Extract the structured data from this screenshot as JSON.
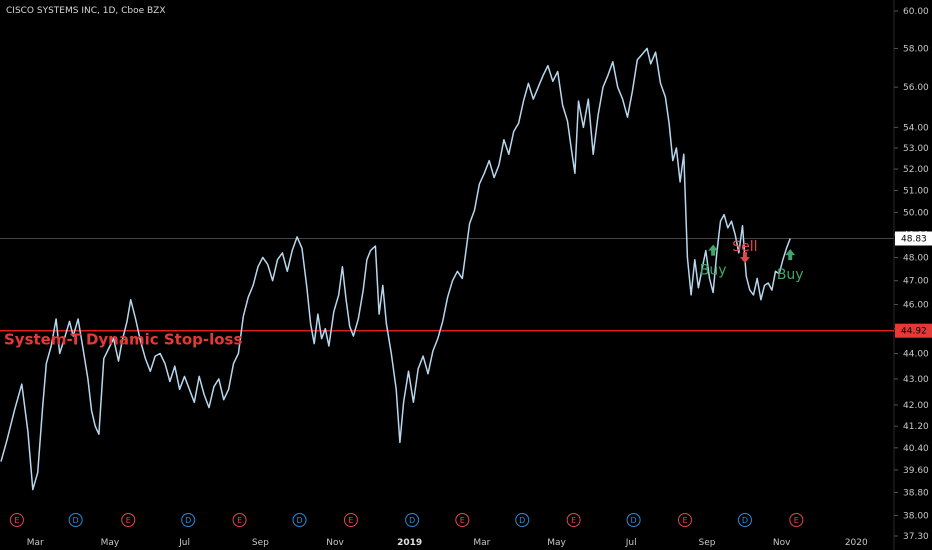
{
  "header": {
    "title": "CISCO SYSTEMS INC, 1D, Cboe BZX"
  },
  "colors": {
    "background": "#000000",
    "price_line": "#b7d7ee",
    "stop_line": "#e11d1d",
    "buy": "#3fa66b",
    "sell": "#e04848",
    "earnings": "#e04848",
    "dividend": "#2c8ad8",
    "current_line": "#444444"
  },
  "chart_data": {
    "type": "line",
    "title": "CISCO SYSTEMS INC, 1D, Cboe BZX",
    "x_range": [
      "2018-02-01",
      "2020-01-31"
    ],
    "y_scale": "log",
    "y_range": [
      37.3,
      60.6
    ],
    "y_ticks": [
      "60.00",
      "58.00",
      "56.00",
      "54.00",
      "53.00",
      "52.00",
      "51.00",
      "50.00",
      "49.00",
      "48.00",
      "47.00",
      "46.00",
      "45.00",
      "44.00",
      "43.00",
      "42.00",
      "41.20",
      "40.40",
      "39.60",
      "38.80",
      "38.00",
      "37.30"
    ],
    "x_ticks": [
      {
        "label": "Mar",
        "date": "2018-03-01",
        "bold": false
      },
      {
        "label": "May",
        "date": "2018-05-01",
        "bold": false
      },
      {
        "label": "Jul",
        "date": "2018-07-01",
        "bold": false
      },
      {
        "label": "Sep",
        "date": "2018-09-01",
        "bold": false
      },
      {
        "label": "Nov",
        "date": "2018-11-01",
        "bold": false
      },
      {
        "label": "2019",
        "date": "2019-01-01",
        "bold": true
      },
      {
        "label": "Mar",
        "date": "2019-03-01",
        "bold": false
      },
      {
        "label": "May",
        "date": "2019-05-01",
        "bold": false
      },
      {
        "label": "Jul",
        "date": "2019-07-01",
        "bold": false
      },
      {
        "label": "Sep",
        "date": "2019-09-01",
        "bold": false
      },
      {
        "label": "Nov",
        "date": "2019-11-01",
        "bold": false
      },
      {
        "label": "2020",
        "date": "2020-01-01",
        "bold": false
      }
    ],
    "series": [
      {
        "kind": "price",
        "points": [
          [
            "2018-02-01",
            39.9
          ],
          [
            "2018-02-06",
            40.7
          ],
          [
            "2018-02-12",
            41.8
          ],
          [
            "2018-02-18",
            42.8
          ],
          [
            "2018-02-23",
            41.0
          ],
          [
            "2018-02-27",
            38.9
          ],
          [
            "2018-03-03",
            39.5
          ],
          [
            "2018-03-07",
            41.9
          ],
          [
            "2018-03-10",
            43.6
          ],
          [
            "2018-03-14",
            44.3
          ],
          [
            "2018-03-18",
            45.4
          ],
          [
            "2018-03-21",
            44.0
          ],
          [
            "2018-03-26",
            44.8
          ],
          [
            "2018-03-29",
            45.3
          ],
          [
            "2018-04-01",
            44.7
          ],
          [
            "2018-04-05",
            45.4
          ],
          [
            "2018-04-09",
            44.2
          ],
          [
            "2018-04-13",
            43.0
          ],
          [
            "2018-04-16",
            41.8
          ],
          [
            "2018-04-19",
            41.2
          ],
          [
            "2018-04-22",
            40.9
          ],
          [
            "2018-04-26",
            43.8
          ],
          [
            "2018-04-30",
            44.2
          ],
          [
            "2018-05-04",
            44.6
          ],
          [
            "2018-05-08",
            43.7
          ],
          [
            "2018-05-11",
            44.5
          ],
          [
            "2018-05-15",
            45.3
          ],
          [
            "2018-05-18",
            46.2
          ],
          [
            "2018-05-22",
            45.4
          ],
          [
            "2018-05-26",
            44.5
          ],
          [
            "2018-05-30",
            43.8
          ],
          [
            "2018-06-03",
            43.3
          ],
          [
            "2018-06-07",
            43.9
          ],
          [
            "2018-06-11",
            44.0
          ],
          [
            "2018-06-15",
            43.6
          ],
          [
            "2018-06-19",
            42.9
          ],
          [
            "2018-06-23",
            43.5
          ],
          [
            "2018-06-27",
            42.6
          ],
          [
            "2018-07-01",
            43.1
          ],
          [
            "2018-07-05",
            42.6
          ],
          [
            "2018-07-09",
            42.1
          ],
          [
            "2018-07-13",
            43.1
          ],
          [
            "2018-07-17",
            42.4
          ],
          [
            "2018-07-21",
            41.9
          ],
          [
            "2018-07-25",
            42.7
          ],
          [
            "2018-07-29",
            43.0
          ],
          [
            "2018-08-02",
            42.2
          ],
          [
            "2018-08-06",
            42.6
          ],
          [
            "2018-08-10",
            43.6
          ],
          [
            "2018-08-14",
            44.0
          ],
          [
            "2018-08-18",
            45.5
          ],
          [
            "2018-08-22",
            46.3
          ],
          [
            "2018-08-26",
            46.8
          ],
          [
            "2018-08-30",
            47.6
          ],
          [
            "2018-09-03",
            48.0
          ],
          [
            "2018-09-07",
            47.7
          ],
          [
            "2018-09-11",
            47.0
          ],
          [
            "2018-09-15",
            47.9
          ],
          [
            "2018-09-19",
            48.2
          ],
          [
            "2018-09-23",
            47.4
          ],
          [
            "2018-09-27",
            48.3
          ],
          [
            "2018-10-01",
            48.9
          ],
          [
            "2018-10-05",
            48.4
          ],
          [
            "2018-10-09",
            46.7
          ],
          [
            "2018-10-12",
            45.2
          ],
          [
            "2018-10-15",
            44.4
          ],
          [
            "2018-10-18",
            45.6
          ],
          [
            "2018-10-21",
            44.6
          ],
          [
            "2018-10-24",
            45.0
          ],
          [
            "2018-10-27",
            44.3
          ],
          [
            "2018-10-31",
            45.7
          ],
          [
            "2018-11-04",
            46.4
          ],
          [
            "2018-11-07",
            47.6
          ],
          [
            "2018-11-10",
            46.2
          ],
          [
            "2018-11-13",
            45.1
          ],
          [
            "2018-11-16",
            44.7
          ],
          [
            "2018-11-20",
            45.4
          ],
          [
            "2018-11-24",
            46.6
          ],
          [
            "2018-11-27",
            47.9
          ],
          [
            "2018-11-30",
            48.3
          ],
          [
            "2018-12-04",
            48.5
          ],
          [
            "2018-12-07",
            45.6
          ],
          [
            "2018-12-10",
            46.8
          ],
          [
            "2018-12-13",
            45.2
          ],
          [
            "2018-12-17",
            44.0
          ],
          [
            "2018-12-21",
            42.6
          ],
          [
            "2018-12-24",
            40.6
          ],
          [
            "2018-12-27",
            42.1
          ],
          [
            "2018-12-31",
            43.3
          ],
          [
            "2019-01-04",
            42.1
          ],
          [
            "2019-01-08",
            43.4
          ],
          [
            "2019-01-12",
            43.9
          ],
          [
            "2019-01-16",
            43.2
          ],
          [
            "2019-01-20",
            44.1
          ],
          [
            "2019-01-24",
            44.6
          ],
          [
            "2019-01-28",
            45.3
          ],
          [
            "2019-02-01",
            46.3
          ],
          [
            "2019-02-05",
            47.0
          ],
          [
            "2019-02-09",
            47.4
          ],
          [
            "2019-02-13",
            47.1
          ],
          [
            "2019-02-16",
            48.3
          ],
          [
            "2019-02-19",
            49.5
          ],
          [
            "2019-02-23",
            50.1
          ],
          [
            "2019-02-27",
            51.3
          ],
          [
            "2019-03-03",
            51.8
          ],
          [
            "2019-03-07",
            52.4
          ],
          [
            "2019-03-11",
            51.6
          ],
          [
            "2019-03-15",
            52.2
          ],
          [
            "2019-03-19",
            53.4
          ],
          [
            "2019-03-23",
            52.7
          ],
          [
            "2019-03-27",
            53.8
          ],
          [
            "2019-03-31",
            54.2
          ],
          [
            "2019-04-04",
            55.3
          ],
          [
            "2019-04-08",
            56.2
          ],
          [
            "2019-04-12",
            55.4
          ],
          [
            "2019-04-16",
            56.0
          ],
          [
            "2019-04-20",
            56.6
          ],
          [
            "2019-04-24",
            57.1
          ],
          [
            "2019-04-28",
            56.3
          ],
          [
            "2019-05-02",
            56.8
          ],
          [
            "2019-05-06",
            55.1
          ],
          [
            "2019-05-10",
            54.3
          ],
          [
            "2019-05-13",
            53.0
          ],
          [
            "2019-05-16",
            51.8
          ],
          [
            "2019-05-19",
            55.3
          ],
          [
            "2019-05-23",
            54.0
          ],
          [
            "2019-05-27",
            55.4
          ],
          [
            "2019-05-31",
            52.7
          ],
          [
            "2019-06-04",
            54.6
          ],
          [
            "2019-06-08",
            56.0
          ],
          [
            "2019-06-12",
            56.6
          ],
          [
            "2019-06-16",
            57.3
          ],
          [
            "2019-06-20",
            56.0
          ],
          [
            "2019-06-24",
            55.4
          ],
          [
            "2019-06-28",
            54.5
          ],
          [
            "2019-07-02",
            55.8
          ],
          [
            "2019-07-06",
            57.4
          ],
          [
            "2019-07-10",
            57.7
          ],
          [
            "2019-07-14",
            58.0
          ],
          [
            "2019-07-17",
            57.2
          ],
          [
            "2019-07-21",
            57.8
          ],
          [
            "2019-07-25",
            56.2
          ],
          [
            "2019-07-29",
            55.5
          ],
          [
            "2019-08-01",
            54.2
          ],
          [
            "2019-08-04",
            52.4
          ],
          [
            "2019-08-07",
            53.0
          ],
          [
            "2019-08-10",
            51.4
          ],
          [
            "2019-08-13",
            52.7
          ],
          [
            "2019-08-16",
            48.0
          ],
          [
            "2019-08-19",
            46.4
          ],
          [
            "2019-08-22",
            47.9
          ],
          [
            "2019-08-25",
            46.7
          ],
          [
            "2019-08-28",
            47.5
          ],
          [
            "2019-08-31",
            48.3
          ],
          [
            "2019-09-03",
            47.1
          ],
          [
            "2019-09-06",
            46.5
          ],
          [
            "2019-09-09",
            48.2
          ],
          [
            "2019-09-12",
            49.6
          ],
          [
            "2019-09-15",
            49.9
          ],
          [
            "2019-09-18",
            49.3
          ],
          [
            "2019-09-21",
            49.6
          ],
          [
            "2019-09-24",
            49.0
          ],
          [
            "2019-09-27",
            48.2
          ],
          [
            "2019-09-30",
            49.4
          ],
          [
            "2019-10-03",
            47.2
          ],
          [
            "2019-10-06",
            46.6
          ],
          [
            "2019-10-09",
            46.4
          ],
          [
            "2019-10-12",
            47.1
          ],
          [
            "2019-10-15",
            46.2
          ],
          [
            "2019-10-18",
            46.8
          ],
          [
            "2019-10-21",
            46.9
          ],
          [
            "2019-10-24",
            46.6
          ],
          [
            "2019-10-27",
            47.4
          ],
          [
            "2019-10-30",
            47.3
          ],
          [
            "2019-11-02",
            47.9
          ],
          [
            "2019-11-05",
            48.4
          ],
          [
            "2019-11-08",
            48.83
          ]
        ]
      }
    ],
    "current_price": {
      "value": 48.83,
      "label": "48.83"
    },
    "stop_loss": {
      "value": 44.92,
      "label": "44.92",
      "text": "System-T Dynamic Stop-loss"
    },
    "signals": [
      {
        "type": "Buy",
        "date": "2019-09-06",
        "value": 48.3,
        "label": "Buy"
      },
      {
        "type": "Sell",
        "date": "2019-10-02",
        "value": 48.1,
        "label": "Sell"
      },
      {
        "type": "Buy",
        "date": "2019-11-08",
        "value": 48.1,
        "label": "Buy"
      }
    ],
    "events": [
      {
        "kind": "earnings",
        "label": "E",
        "date": "2018-02-14"
      },
      {
        "kind": "dividend",
        "label": "D",
        "date": "2018-04-03"
      },
      {
        "kind": "earnings",
        "label": "E",
        "date": "2018-05-16"
      },
      {
        "kind": "dividend",
        "label": "D",
        "date": "2018-07-04"
      },
      {
        "kind": "earnings",
        "label": "E",
        "date": "2018-08-15"
      },
      {
        "kind": "dividend",
        "label": "D",
        "date": "2018-10-03"
      },
      {
        "kind": "earnings",
        "label": "E",
        "date": "2018-11-14"
      },
      {
        "kind": "dividend",
        "label": "D",
        "date": "2019-01-03"
      },
      {
        "kind": "earnings",
        "label": "E",
        "date": "2019-02-13"
      },
      {
        "kind": "dividend",
        "label": "D",
        "date": "2019-04-03"
      },
      {
        "kind": "earnings",
        "label": "E",
        "date": "2019-05-15"
      },
      {
        "kind": "dividend",
        "label": "D",
        "date": "2019-07-03"
      },
      {
        "kind": "earnings",
        "label": "E",
        "date": "2019-08-14"
      },
      {
        "kind": "dividend",
        "label": "D",
        "date": "2019-10-02"
      },
      {
        "kind": "earnings",
        "label": "E",
        "date": "2019-11-13"
      }
    ]
  }
}
